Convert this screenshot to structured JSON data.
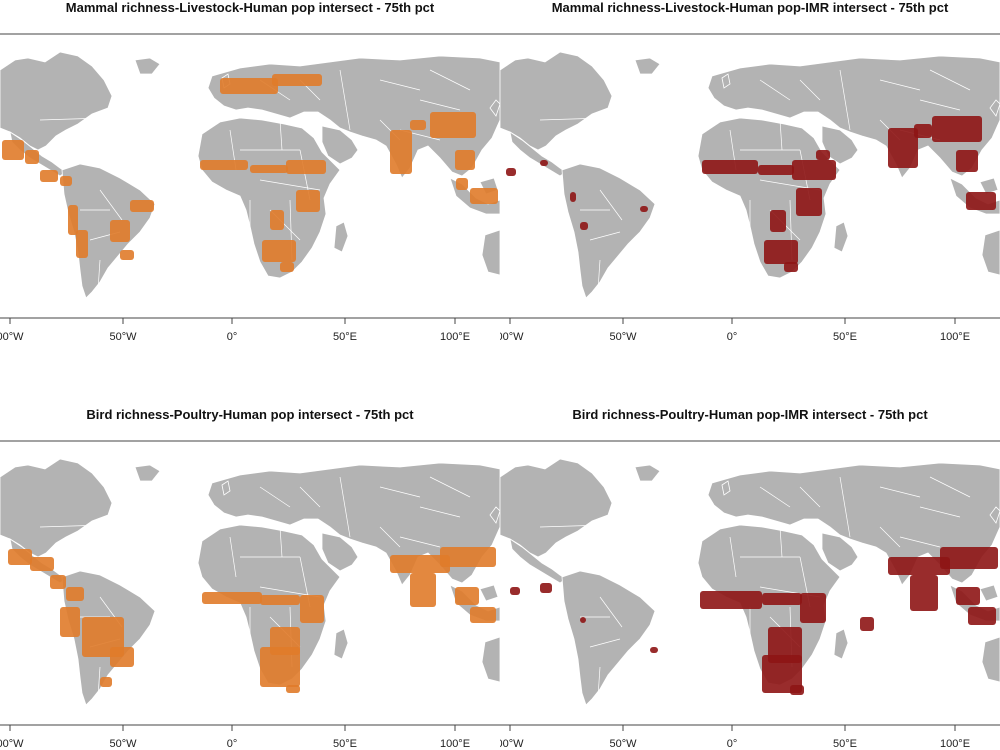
{
  "colors": {
    "land": "#b3b3b3",
    "borders": "#ffffff",
    "ocean": "#ffffff",
    "hotspot_orange": "#e07b2a",
    "hotspot_red": "#8e1515"
  },
  "axis": {
    "x_tick_labels": [
      "00°W",
      "50°W",
      "0°",
      "50°E",
      "100°E"
    ]
  },
  "panels": [
    {
      "title": "Mammal richness-Livestock-Human pop intersect - 75th pct",
      "overlay": "orange",
      "set": "mammal"
    },
    {
      "title": "Mammal richness-Livestock-Human pop-IMR intersect - 75th pct",
      "overlay": "red",
      "set": "mammal"
    },
    {
      "title": "Bird richness-Poultry-Human pop intersect - 75th pct",
      "overlay": "orange",
      "set": "bird"
    },
    {
      "title": "Bird richness-Poultry-Human pop-IMR intersect - 75th pct",
      "overlay": "red",
      "set": "bird"
    }
  ]
}
